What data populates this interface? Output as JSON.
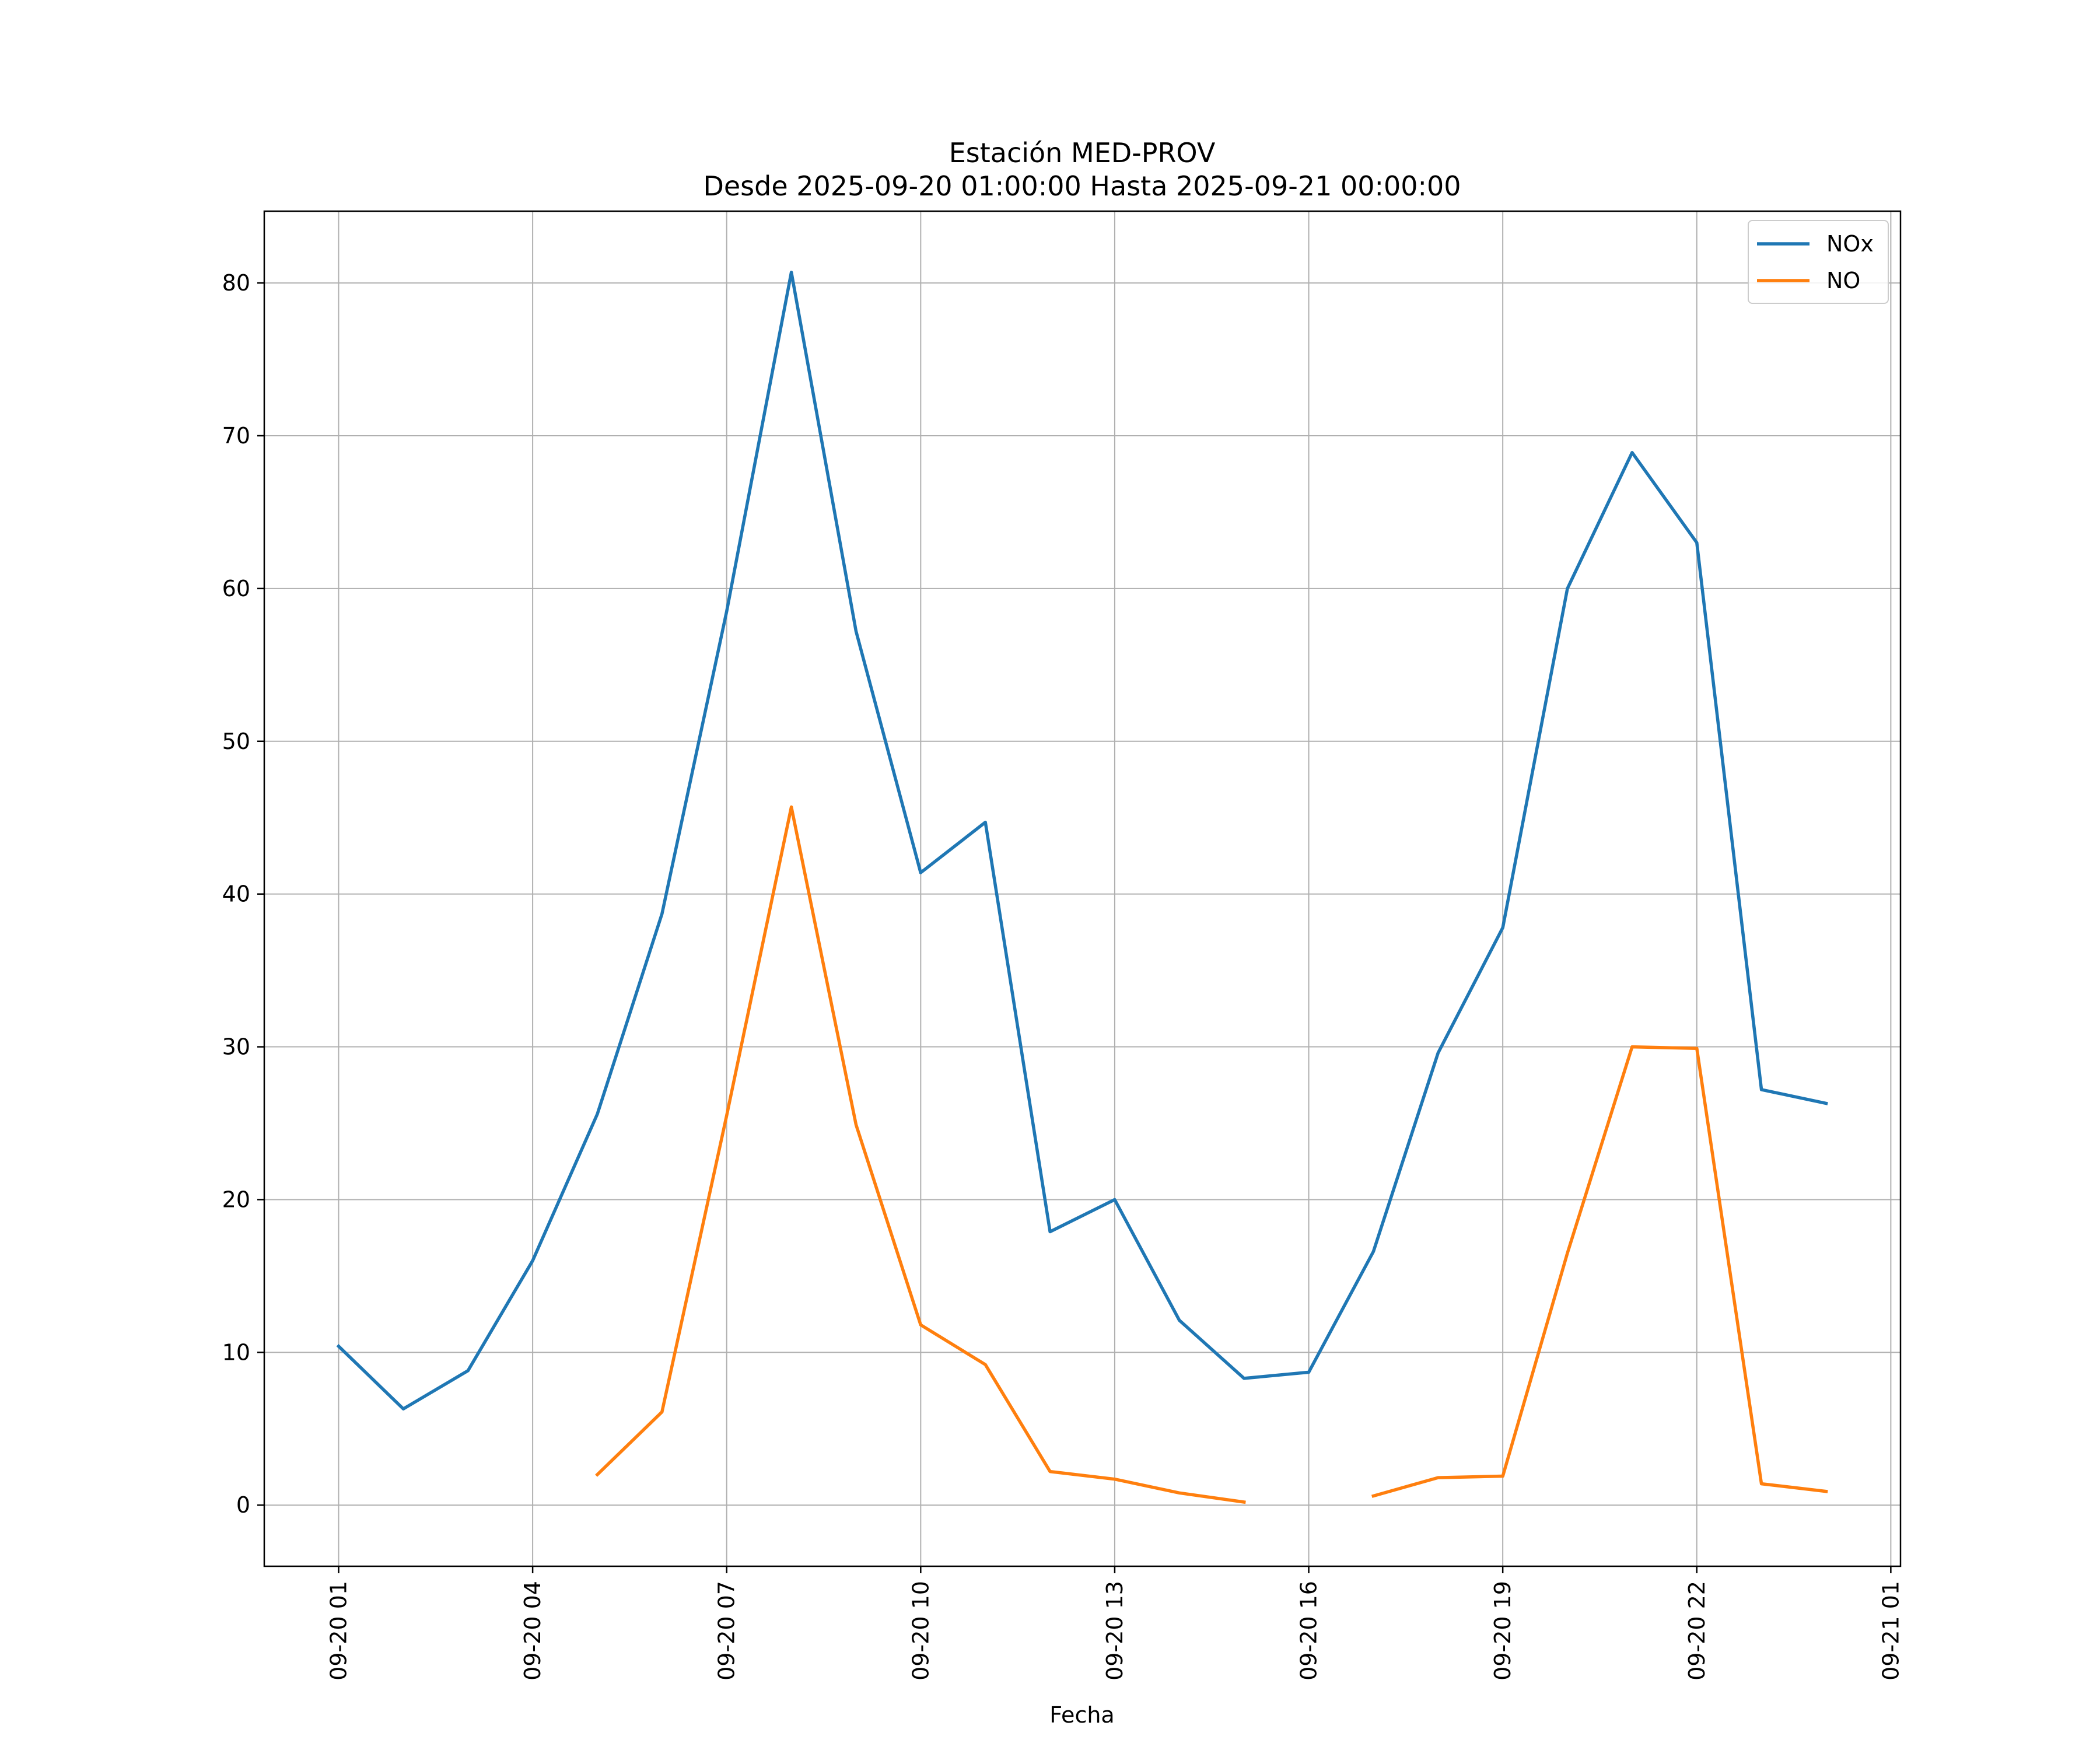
{
  "chart_data": {
    "type": "line",
    "title": "Estación MED-PROV",
    "subtitle": "Desde 2025-09-20 01:00:00 Hasta 2025-09-21 00:00:00",
    "xlabel": "Fecha",
    "ylabel": "",
    "x": [
      "2025-09-20 01:00",
      "2025-09-20 02:00",
      "2025-09-20 03:00",
      "2025-09-20 04:00",
      "2025-09-20 05:00",
      "2025-09-20 06:00",
      "2025-09-20 07:00",
      "2025-09-20 08:00",
      "2025-09-20 09:00",
      "2025-09-20 10:00",
      "2025-09-20 11:00",
      "2025-09-20 12:00",
      "2025-09-20 13:00",
      "2025-09-20 14:00",
      "2025-09-20 15:00",
      "2025-09-20 16:00",
      "2025-09-20 17:00",
      "2025-09-20 18:00",
      "2025-09-20 19:00",
      "2025-09-20 20:00",
      "2025-09-20 21:00",
      "2025-09-20 22:00",
      "2025-09-20 23:00",
      "2025-09-21 00:00"
    ],
    "series": [
      {
        "name": "NOx",
        "color": "#1f77b4",
        "values": [
          10.4,
          6.3,
          8.8,
          16.0,
          25.6,
          38.7,
          58.5,
          80.7,
          57.2,
          41.4,
          44.7,
          17.9,
          20.0,
          12.1,
          8.3,
          8.7,
          16.6,
          29.6,
          37.8,
          60.0,
          68.9,
          63.0,
          27.2,
          26.3
        ]
      },
      {
        "name": "NO",
        "color": "#ff7f0e",
        "values": [
          null,
          null,
          null,
          null,
          2.0,
          6.1,
          25.5,
          45.7,
          24.9,
          11.8,
          9.2,
          2.2,
          1.7,
          0.8,
          0.2,
          null,
          0.6,
          1.8,
          1.9,
          16.5,
          30.0,
          29.9,
          1.4,
          0.9
        ]
      }
    ],
    "xticks": [
      "09-20 01",
      "09-20 04",
      "09-20 07",
      "09-20 10",
      "09-20 13",
      "09-20 16",
      "09-20 19",
      "09-20 22",
      "09-21 01"
    ],
    "yticks": [
      0,
      10,
      20,
      30,
      40,
      50,
      60,
      70,
      80
    ],
    "xlim": [
      "2025-09-19 23:51",
      "2025-09-21 01:09"
    ],
    "ylim": [
      -4,
      84.7
    ],
    "grid": true,
    "legend": "top-right"
  }
}
